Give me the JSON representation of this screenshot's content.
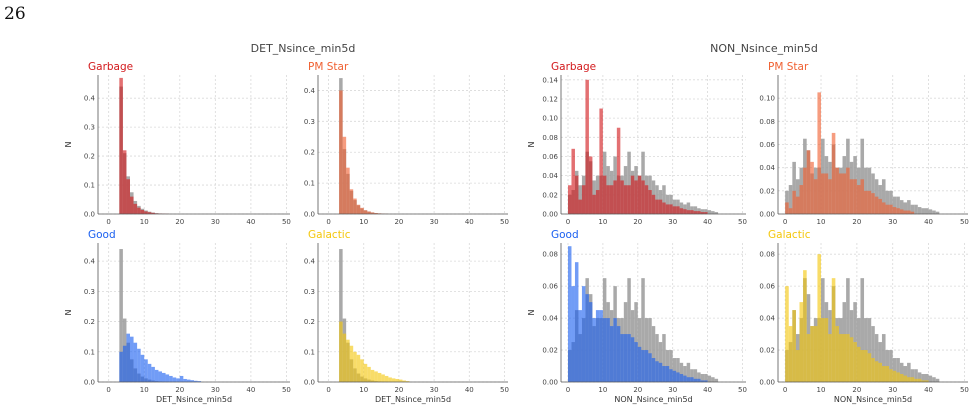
{
  "page_number": "26",
  "colors": {
    "background_hist": "#9a9a9a",
    "Garbage": "#d2181b",
    "PM Star": "#f06031",
    "Good": "#1a5ff0",
    "Galactic": "#f4c70b",
    "grid": "#d9d9d9"
  },
  "chart_data": [
    {
      "type": "histogram",
      "group_title": "DET_Nsince_min5d",
      "title": "Garbage",
      "color_key": "Garbage",
      "xlabel": "",
      "ylabel": "N",
      "xlim": [
        -3,
        51
      ],
      "ylim": [
        0,
        0.48
      ],
      "xticks": [
        0,
        10,
        20,
        30,
        40,
        50
      ],
      "yticks": [
        0.0,
        0.1,
        0.2,
        0.3,
        0.4
      ],
      "ytick_labels": [
        "0.0",
        "0.1",
        "0.2",
        "0.3",
        "0.4"
      ],
      "bin_start": 3,
      "bin_width": 1,
      "background_values": [
        0.44,
        0.21,
        0.13,
        0.075,
        0.045,
        0.028,
        0.018,
        0.012,
        0.008,
        0.005,
        0.003,
        0.002,
        0.0015,
        0.001
      ],
      "class_values": [
        0.47,
        0.22,
        0.12,
        0.06,
        0.035,
        0.022,
        0.014,
        0.009,
        0.006,
        0.004,
        0.002,
        0.0015,
        0.001,
        0.0005
      ]
    },
    {
      "type": "histogram",
      "group_title": "",
      "title": "PM Star",
      "color_key": "PM Star",
      "xlabel": "",
      "ylabel": "",
      "xlim": [
        -3,
        51
      ],
      "ylim": [
        0,
        0.45
      ],
      "xticks": [
        0,
        10,
        20,
        30,
        40,
        50
      ],
      "yticks": [
        0.0,
        0.1,
        0.2,
        0.3,
        0.4
      ],
      "ytick_labels": [
        "0.0",
        "0.1",
        "0.2",
        "0.3",
        "0.4"
      ],
      "bin_start": 3,
      "bin_width": 1,
      "background_values": [
        0.44,
        0.21,
        0.13,
        0.075,
        0.045,
        0.028,
        0.018,
        0.012,
        0.008,
        0.005,
        0.003,
        0.002,
        0.0015,
        0.001
      ],
      "class_values": [
        0.4,
        0.25,
        0.15,
        0.08,
        0.05,
        0.03,
        0.02,
        0.012,
        0.008,
        0.005,
        0.003,
        0.002,
        0.001,
        0.0005
      ]
    },
    {
      "type": "histogram",
      "group_title": "",
      "title": "Good",
      "color_key": "Good",
      "xlabel": "DET_Nsince_min5d",
      "ylabel": "N",
      "xlim": [
        -3,
        51
      ],
      "ylim": [
        0,
        0.46
      ],
      "xticks": [
        0,
        10,
        20,
        30,
        40,
        50
      ],
      "yticks": [
        0.0,
        0.1,
        0.2,
        0.3,
        0.4
      ],
      "ytick_labels": [
        "0.0",
        "0.1",
        "0.2",
        "0.3",
        "0.4"
      ],
      "bin_start": 3,
      "bin_width": 1,
      "background_values": [
        0.44,
        0.21,
        0.13,
        0.075,
        0.045,
        0.028,
        0.018,
        0.012,
        0.008,
        0.005,
        0.003,
        0.002,
        0.0015,
        0.001,
        0,
        0,
        0,
        0,
        0,
        0,
        0,
        0,
        0
      ],
      "class_values": [
        0.1,
        0.12,
        0.16,
        0.15,
        0.13,
        0.11,
        0.09,
        0.075,
        0.06,
        0.05,
        0.04,
        0.035,
        0.03,
        0.025,
        0.02,
        0.015,
        0.012,
        0.02,
        0.01,
        0.008,
        0.006,
        0.004,
        0.003
      ]
    },
    {
      "type": "histogram",
      "group_title": "",
      "title": "Galactic",
      "color_key": "Galactic",
      "xlabel": "DET_Nsince_min5d",
      "ylabel": "",
      "xlim": [
        -3,
        51
      ],
      "ylim": [
        0,
        0.46
      ],
      "xticks": [
        0,
        10,
        20,
        30,
        40,
        50
      ],
      "yticks": [
        0.0,
        0.1,
        0.2,
        0.3,
        0.4
      ],
      "ytick_labels": [
        "0.0",
        "0.1",
        "0.2",
        "0.3",
        "0.4"
      ],
      "bin_start": 3,
      "bin_width": 1,
      "background_values": [
        0.44,
        0.21,
        0.13,
        0.075,
        0.045,
        0.028,
        0.018,
        0.012,
        0.008,
        0.005,
        0.003,
        0.002,
        0.0015,
        0.001,
        0,
        0,
        0,
        0,
        0,
        0
      ],
      "class_values": [
        0.2,
        0.16,
        0.14,
        0.12,
        0.1,
        0.09,
        0.075,
        0.06,
        0.05,
        0.04,
        0.035,
        0.03,
        0.025,
        0.02,
        0.015,
        0.012,
        0.01,
        0.008,
        0.005,
        0.003
      ]
    },
    {
      "type": "histogram",
      "group_title": "NON_Nsince_min5d",
      "title": "Garbage",
      "color_key": "Garbage",
      "xlabel": "",
      "ylabel": "N",
      "xlim": [
        -2,
        51
      ],
      "ylim": [
        0,
        0.145
      ],
      "xticks": [
        0,
        10,
        20,
        30,
        40,
        50
      ],
      "yticks": [
        0.0,
        0.02,
        0.04,
        0.06,
        0.08,
        0.1,
        0.12,
        0.14
      ],
      "ytick_labels": [
        "0.00",
        "0.02",
        "0.04",
        "0.06",
        "0.08",
        "0.10",
        "0.12",
        "0.14"
      ],
      "bin_start": 0,
      "bin_width": 1,
      "background_values": [
        0.02,
        0.025,
        0.045,
        0.03,
        0.04,
        0.065,
        0.055,
        0.035,
        0.04,
        0.04,
        0.065,
        0.05,
        0.045,
        0.06,
        0.04,
        0.04,
        0.05,
        0.065,
        0.045,
        0.05,
        0.04,
        0.065,
        0.04,
        0.04,
        0.035,
        0.03,
        0.025,
        0.03,
        0.02,
        0.02,
        0.015,
        0.015,
        0.012,
        0.01,
        0.012,
        0.008,
        0.008,
        0.006,
        0.005,
        0.005,
        0.004,
        0.003,
        0.002
      ],
      "class_values": [
        0.03,
        0.068,
        0.04,
        0.015,
        0.03,
        0.14,
        0.06,
        0.02,
        0.025,
        0.11,
        0.04,
        0.03,
        0.03,
        0.035,
        0.09,
        0.035,
        0.03,
        0.03,
        0.04,
        0.035,
        0.04,
        0.035,
        0.03,
        0.025,
        0.02,
        0.015,
        0.015,
        0.012,
        0.01,
        0.01,
        0.008,
        0.008,
        0.006,
        0.005,
        0.004,
        0.004,
        0.003,
        0.003,
        0.002,
        0.002
      ]
    },
    {
      "type": "histogram",
      "group_title": "",
      "title": "PM Star",
      "color_key": "PM Star",
      "xlabel": "",
      "ylabel": "",
      "xlim": [
        -2,
        51
      ],
      "ylim": [
        0,
        0.12
      ],
      "xticks": [
        0,
        10,
        20,
        30,
        40,
        50
      ],
      "yticks": [
        0.0,
        0.02,
        0.04,
        0.06,
        0.08,
        0.1
      ],
      "ytick_labels": [
        "0.00",
        "0.02",
        "0.04",
        "0.06",
        "0.08",
        "0.10"
      ],
      "bin_start": 0,
      "bin_width": 1,
      "background_values": [
        0.02,
        0.025,
        0.045,
        0.03,
        0.04,
        0.065,
        0.055,
        0.035,
        0.04,
        0.04,
        0.065,
        0.05,
        0.045,
        0.06,
        0.04,
        0.04,
        0.05,
        0.065,
        0.045,
        0.05,
        0.04,
        0.065,
        0.04,
        0.04,
        0.035,
        0.03,
        0.025,
        0.03,
        0.02,
        0.02,
        0.015,
        0.015,
        0.012,
        0.01,
        0.012,
        0.008,
        0.008,
        0.006,
        0.005,
        0.005,
        0.004,
        0.003,
        0.002
      ],
      "class_values": [
        0.01,
        0.005,
        0.02,
        0.015,
        0.025,
        0.04,
        0.055,
        0.045,
        0.03,
        0.105,
        0.035,
        0.035,
        0.03,
        0.07,
        0.04,
        0.035,
        0.035,
        0.04,
        0.03,
        0.03,
        0.025,
        0.03,
        0.02,
        0.02,
        0.018,
        0.015,
        0.013,
        0.01,
        0.008,
        0.008,
        0.006,
        0.005,
        0.004,
        0.003,
        0.003,
        0.002
      ]
    },
    {
      "type": "histogram",
      "group_title": "",
      "title": "Good",
      "color_key": "Good",
      "xlabel": "NON_Nsince_min5d",
      "ylabel": "N",
      "xlim": [
        -2,
        51
      ],
      "ylim": [
        0,
        0.087
      ],
      "xticks": [
        0,
        10,
        20,
        30,
        40,
        50
      ],
      "yticks": [
        0.0,
        0.02,
        0.04,
        0.06,
        0.08
      ],
      "ytick_labels": [
        "0.00",
        "0.02",
        "0.04",
        "0.06",
        "0.08"
      ],
      "bin_start": 0,
      "bin_width": 1,
      "background_values": [
        0.02,
        0.025,
        0.045,
        0.03,
        0.04,
        0.065,
        0.055,
        0.035,
        0.04,
        0.04,
        0.065,
        0.05,
        0.045,
        0.06,
        0.04,
        0.04,
        0.05,
        0.065,
        0.045,
        0.05,
        0.04,
        0.065,
        0.04,
        0.04,
        0.035,
        0.03,
        0.025,
        0.03,
        0.02,
        0.02,
        0.015,
        0.015,
        0.012,
        0.01,
        0.012,
        0.008,
        0.008,
        0.006,
        0.005,
        0.005,
        0.004,
        0.003,
        0.002
      ],
      "class_values": [
        0.085,
        0.06,
        0.075,
        0.045,
        0.06,
        0.055,
        0.05,
        0.04,
        0.045,
        0.045,
        0.04,
        0.04,
        0.035,
        0.04,
        0.035,
        0.03,
        0.03,
        0.03,
        0.028,
        0.025,
        0.022,
        0.02,
        0.02,
        0.018,
        0.015,
        0.013,
        0.012,
        0.01,
        0.01,
        0.008,
        0.007,
        0.006,
        0.005,
        0.004,
        0.003,
        0.003,
        0.002,
        0.002,
        0.001,
        0.001
      ]
    },
    {
      "type": "histogram",
      "group_title": "",
      "title": "Galactic",
      "color_key": "Galactic",
      "xlabel": "NON_Nsince_min5d",
      "ylabel": "",
      "xlim": [
        -2,
        51
      ],
      "ylim": [
        0,
        0.087
      ],
      "xticks": [
        0,
        10,
        20,
        30,
        40,
        50
      ],
      "yticks": [
        0.0,
        0.02,
        0.04,
        0.06,
        0.08
      ],
      "ytick_labels": [
        "0.00",
        "0.02",
        "0.04",
        "0.06",
        "0.08"
      ],
      "bin_start": 0,
      "bin_width": 1,
      "background_values": [
        0.02,
        0.025,
        0.045,
        0.03,
        0.04,
        0.065,
        0.055,
        0.035,
        0.04,
        0.04,
        0.065,
        0.05,
        0.045,
        0.06,
        0.04,
        0.04,
        0.05,
        0.065,
        0.045,
        0.05,
        0.04,
        0.065,
        0.04,
        0.04,
        0.035,
        0.03,
        0.025,
        0.03,
        0.02,
        0.02,
        0.015,
        0.015,
        0.012,
        0.01,
        0.012,
        0.008,
        0.008,
        0.006,
        0.005,
        0.005,
        0.004,
        0.003,
        0.002
      ],
      "class_values": [
        0.06,
        0.035,
        0.045,
        0.02,
        0.05,
        0.07,
        0.03,
        0.035,
        0.035,
        0.08,
        0.04,
        0.04,
        0.03,
        0.065,
        0.035,
        0.03,
        0.03,
        0.03,
        0.028,
        0.025,
        0.022,
        0.02,
        0.02,
        0.018,
        0.015,
        0.013,
        0.012,
        0.01,
        0.01,
        0.008,
        0.007,
        0.006,
        0.005,
        0.004,
        0.003,
        0.003,
        0.002,
        0.002,
        0.001,
        0.001
      ]
    }
  ]
}
